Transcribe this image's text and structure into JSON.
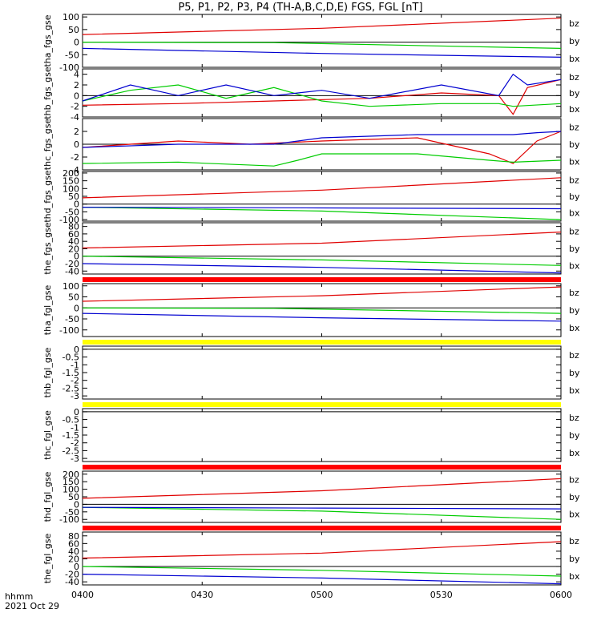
{
  "title": "P5, P1, P2, P3, P4 (TH-A,B,C,D,E) FGS, FGL [nT]",
  "time_axis": {
    "ticks": [
      "0400",
      "0430",
      "0500",
      "0530",
      "0600"
    ],
    "corner_label": "hhmm",
    "date_label": "2021 Oct 29"
  },
  "colors": {
    "bz": "#e00000",
    "by": "#00cc00",
    "bx": "#0000d0",
    "status_red": "#ff0000",
    "status_yellow": "#ffff00"
  },
  "status_bars": [
    {
      "after_panel": 4,
      "color": "red"
    },
    {
      "after_panel": 5,
      "color": "yellow"
    },
    {
      "after_panel": 6,
      "color": "yellow"
    },
    {
      "after_panel": 7,
      "color": "red"
    },
    {
      "after_panel": 8,
      "color": "red"
    }
  ],
  "chart_data": [
    {
      "type": "line",
      "ylabel": "tha_fgs_gse",
      "ylim": [
        -100,
        110
      ],
      "yticks": [
        -100,
        -50,
        0,
        50,
        100
      ],
      "x_range": [
        "04:00",
        "06:00"
      ],
      "series": [
        {
          "name": "bz",
          "x": [
            0,
            0.5,
            1
          ],
          "values": [
            30,
            55,
            95
          ]
        },
        {
          "name": "by",
          "x": [
            0,
            0.4,
            1
          ],
          "values": [
            0,
            -2,
            -25
          ]
        },
        {
          "name": "bx",
          "x": [
            0,
            0.5,
            1
          ],
          "values": [
            -25,
            -45,
            -60
          ]
        }
      ]
    },
    {
      "type": "line",
      "ylabel": "thb_fgs_gse",
      "ylim": [
        -4,
        5
      ],
      "yticks": [
        -4,
        -2,
        0,
        2,
        4
      ],
      "x_range": [
        "04:00",
        "06:00"
      ],
      "series": [
        {
          "name": "bz",
          "x": [
            0,
            0.2,
            0.4,
            0.6,
            0.75,
            0.87,
            0.9,
            0.93,
            1
          ],
          "values": [
            -1.8,
            -1.5,
            -1,
            -0.5,
            0.5,
            0,
            -3.5,
            1.5,
            3
          ]
        },
        {
          "name": "by",
          "x": [
            0,
            0.1,
            0.2,
            0.3,
            0.4,
            0.5,
            0.6,
            0.75,
            0.87,
            0.9,
            1
          ],
          "values": [
            -1,
            1,
            2,
            -0.5,
            1.5,
            -1,
            -2,
            -1.5,
            -1.5,
            -2,
            -1.5
          ]
        },
        {
          "name": "bx",
          "x": [
            0,
            0.1,
            0.2,
            0.3,
            0.4,
            0.5,
            0.6,
            0.75,
            0.87,
            0.9,
            0.93,
            1
          ],
          "values": [
            -1,
            2,
            0,
            2,
            0,
            1,
            -0.5,
            2,
            0,
            4,
            2,
            3
          ]
        }
      ]
    },
    {
      "type": "line",
      "ylabel": "thc_fgs_gse",
      "ylim": [
        -4,
        4
      ],
      "yticks": [
        -4,
        -2,
        0,
        2
      ],
      "x_range": [
        "04:00",
        "06:00"
      ],
      "series": [
        {
          "name": "bz",
          "x": [
            0,
            0.2,
            0.35,
            0.5,
            0.7,
            0.85,
            0.9,
            0.95,
            1
          ],
          "values": [
            -0.5,
            0.5,
            0,
            0.5,
            1,
            -1.5,
            -3,
            0.5,
            2
          ]
        },
        {
          "name": "by",
          "x": [
            0,
            0.2,
            0.4,
            0.45,
            0.5,
            0.7,
            0.85,
            0.9,
            1
          ],
          "values": [
            -3,
            -2.8,
            -3.4,
            -2.5,
            -1.5,
            -1.5,
            -2.5,
            -2.8,
            -2.5
          ]
        },
        {
          "name": "bx",
          "x": [
            0,
            0.2,
            0.4,
            0.5,
            0.7,
            0.85,
            0.9,
            0.95,
            1
          ],
          "values": [
            -0.5,
            0,
            0,
            1,
            1.5,
            1.5,
            1.5,
            1.8,
            2
          ]
        }
      ]
    },
    {
      "type": "line",
      "ylabel": "thd_fgs_gse",
      "ylim": [
        -110,
        210
      ],
      "yticks": [
        -100,
        -50,
        0,
        50,
        100,
        150,
        200
      ],
      "x_range": [
        "04:00",
        "06:00"
      ],
      "series": [
        {
          "name": "bz",
          "x": [
            0,
            0.5,
            1
          ],
          "values": [
            40,
            90,
            170
          ]
        },
        {
          "name": "by",
          "x": [
            0,
            0.5,
            1
          ],
          "values": [
            -20,
            -45,
            -100
          ]
        },
        {
          "name": "bx",
          "x": [
            0,
            0.5,
            1
          ],
          "values": [
            -20,
            -25,
            -30
          ]
        }
      ]
    },
    {
      "type": "line",
      "ylabel": "the_fgs_gse",
      "ylim": [
        -48,
        90
      ],
      "yticks": [
        -40,
        -20,
        0,
        20,
        40,
        60,
        80
      ],
      "x_range": [
        "04:00",
        "06:00"
      ],
      "series": [
        {
          "name": "bz",
          "x": [
            0,
            0.5,
            1
          ],
          "values": [
            22,
            35,
            65
          ]
        },
        {
          "name": "by",
          "x": [
            0,
            0.5,
            1
          ],
          "values": [
            0,
            -10,
            -25
          ]
        },
        {
          "name": "bx",
          "x": [
            0,
            0.5,
            1
          ],
          "values": [
            -20,
            -30,
            -45
          ]
        }
      ]
    },
    {
      "type": "line",
      "ylabel": "tha_fgl_gse",
      "ylim": [
        -130,
        110
      ],
      "yticks": [
        -100,
        -50,
        0,
        50,
        100
      ],
      "x_range": [
        "04:00",
        "06:00"
      ],
      "series": [
        {
          "name": "bz",
          "x": [
            0,
            0.5,
            1
          ],
          "values": [
            30,
            55,
            95
          ]
        },
        {
          "name": "by",
          "x": [
            0,
            0.4,
            1
          ],
          "values": [
            0,
            -2,
            -25
          ]
        },
        {
          "name": "bx",
          "x": [
            0,
            0.5,
            1
          ],
          "values": [
            -25,
            -45,
            -60
          ]
        }
      ]
    },
    {
      "type": "line",
      "ylabel": "thb_fgl_gse",
      "ylim": [
        -3.2,
        0.2
      ],
      "yticks": [
        -3.0,
        -2.5,
        -2.0,
        -1.5,
        -1.0,
        -0.5,
        0.0
      ],
      "x_range": [
        "04:00",
        "06:00"
      ],
      "series": []
    },
    {
      "type": "line",
      "ylabel": "thc_fgl_gse",
      "ylim": [
        -3.2,
        0.2
      ],
      "yticks": [
        -3.0,
        -2.5,
        -2.0,
        -1.5,
        -1.0,
        -0.5,
        0.0
      ],
      "x_range": [
        "04:00",
        "06:00"
      ],
      "series": []
    },
    {
      "type": "line",
      "ylabel": "thd_fgl_gse",
      "ylim": [
        -120,
        220
      ],
      "yticks": [
        -100,
        -50,
        0,
        50,
        100,
        150,
        200
      ],
      "x_range": [
        "04:00",
        "06:00"
      ],
      "series": [
        {
          "name": "bz",
          "x": [
            0,
            0.5,
            1
          ],
          "values": [
            40,
            90,
            170
          ]
        },
        {
          "name": "by",
          "x": [
            0,
            0.5,
            1
          ],
          "values": [
            -20,
            -45,
            -100
          ]
        },
        {
          "name": "bx",
          "x": [
            0,
            0.5,
            1
          ],
          "values": [
            -20,
            -25,
            -30
          ]
        }
      ]
    },
    {
      "type": "line",
      "ylabel": "the_fgl_gse",
      "ylim": [
        -48,
        90
      ],
      "yticks": [
        -40,
        -20,
        0,
        20,
        40,
        60,
        80
      ],
      "x_range": [
        "04:00",
        "06:00"
      ],
      "series": [
        {
          "name": "bz",
          "x": [
            0,
            0.5,
            1
          ],
          "values": [
            22,
            35,
            65
          ]
        },
        {
          "name": "by",
          "x": [
            0,
            0.5,
            1
          ],
          "values": [
            0,
            -10,
            -25
          ]
        },
        {
          "name": "bx",
          "x": [
            0,
            0.5,
            1
          ],
          "values": [
            -20,
            -30,
            -45
          ]
        }
      ]
    }
  ]
}
